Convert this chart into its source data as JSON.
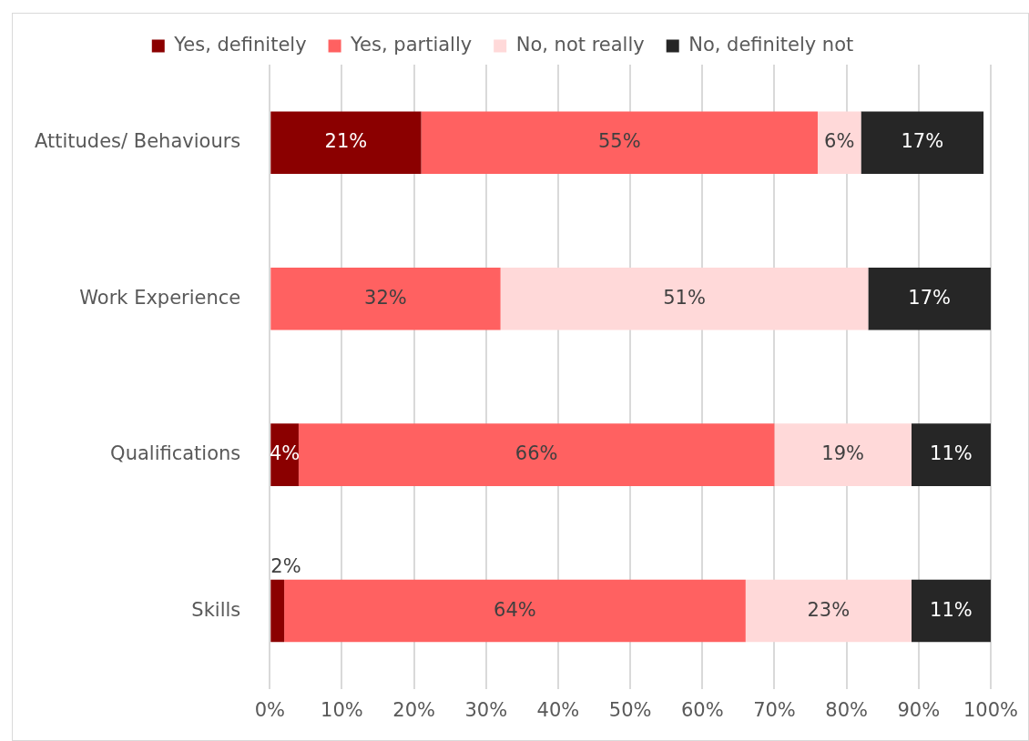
{
  "chart_data": {
    "type": "bar",
    "orientation": "horizontal",
    "stacked": true,
    "categories": [
      "Attitudes/ Behaviours",
      "Work Experience",
      "Qualifications",
      "Skills"
    ],
    "series": [
      {
        "name": "Yes, definitely",
        "color": "#8b0000",
        "values": [
          21,
          0,
          4,
          2
        ],
        "value_labels": [
          "21%",
          null,
          "4%",
          "2%"
        ]
      },
      {
        "name": "Yes, partially",
        "color": "#ff6161",
        "values": [
          55,
          32,
          66,
          64
        ],
        "value_labels": [
          "55%",
          "32%",
          "66%",
          "64%"
        ]
      },
      {
        "name": "No, not really",
        "color": "#ffd9d9",
        "values": [
          6,
          51,
          19,
          23
        ],
        "value_labels": [
          "6%",
          "51%",
          "19%",
          "23%"
        ]
      },
      {
        "name": "No, definitely not",
        "color": "#262626",
        "values": [
          17,
          17,
          11,
          11
        ],
        "value_labels": [
          "17%",
          "17%",
          "11%",
          "11%"
        ]
      }
    ],
    "xlim": [
      0,
      100
    ],
    "xticks": [
      {
        "value": 0,
        "label": "0%"
      },
      {
        "value": 10,
        "label": "10%"
      },
      {
        "value": 20,
        "label": "20%"
      },
      {
        "value": 30,
        "label": "30%"
      },
      {
        "value": 40,
        "label": "40%"
      },
      {
        "value": 50,
        "label": "50%"
      },
      {
        "value": 60,
        "label": "60%"
      },
      {
        "value": 70,
        "label": "70%"
      },
      {
        "value": 80,
        "label": "80%"
      },
      {
        "value": 90,
        "label": "90%"
      },
      {
        "value": 100,
        "label": "100%"
      }
    ],
    "grid": "x",
    "legend": "top"
  }
}
